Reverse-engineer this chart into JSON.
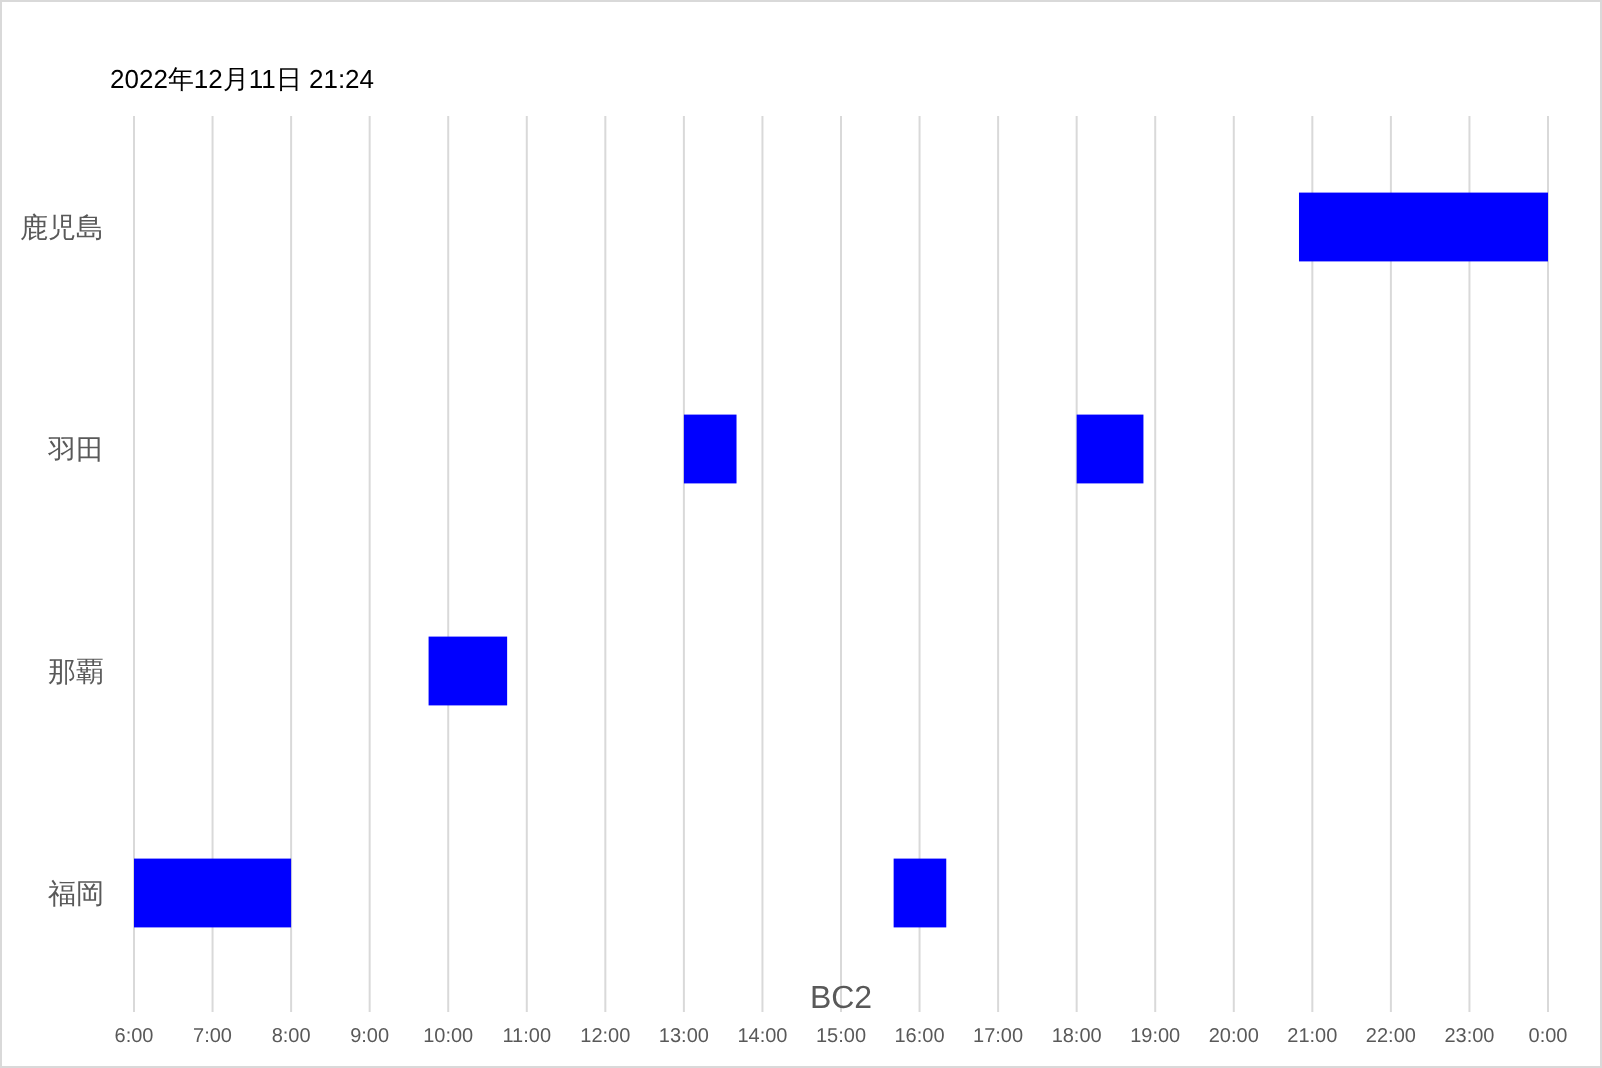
{
  "chart_data": {
    "type": "bar",
    "orientation": "horizontal",
    "title": "2022年12月11日 21:24",
    "xlabel": "BC2",
    "categories": [
      "鹿児島",
      "羽田",
      "那覇",
      "福岡"
    ],
    "series": [
      {
        "color": "#0000ff",
        "values": [
          3.17,
          0.67,
          1,
          2
        ],
        "base": [
          20.83,
          13,
          9.75,
          6
        ]
      },
      {
        "color": "#0000ff",
        "values": [
          null,
          0.85,
          null,
          0.67
        ],
        "base": [
          null,
          18,
          null,
          15.67
        ]
      }
    ],
    "xlim": [
      6,
      24
    ],
    "xticks": [
      {
        "value": 6,
        "label": "6:00"
      },
      {
        "value": 7,
        "label": "7:00"
      },
      {
        "value": 8,
        "label": "8:00"
      },
      {
        "value": 9,
        "label": "9:00"
      },
      {
        "value": 10,
        "label": "10:00"
      },
      {
        "value": 11,
        "label": "11:00"
      },
      {
        "value": 12,
        "label": "12:00"
      },
      {
        "value": 13,
        "label": "13:00"
      },
      {
        "value": 14,
        "label": "14:00"
      },
      {
        "value": 15,
        "label": "15:00"
      },
      {
        "value": 16,
        "label": "16:00"
      },
      {
        "value": 17,
        "label": "17:00"
      },
      {
        "value": 18,
        "label": "18:00"
      },
      {
        "value": 19,
        "label": "19:00"
      },
      {
        "value": 20,
        "label": "20:00"
      },
      {
        "value": 21,
        "label": "21:00"
      },
      {
        "value": 22,
        "label": "22:00"
      },
      {
        "value": 23,
        "label": "23:00"
      },
      {
        "value": 24,
        "label": "0:00"
      }
    ],
    "grid": "x"
  }
}
